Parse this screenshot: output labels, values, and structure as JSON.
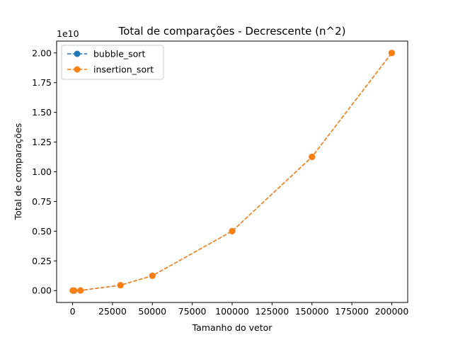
{
  "chart_data": {
    "type": "line",
    "title": "Total de comparações - Decrescente (n^2)",
    "xlabel": "Tamanho do vetor",
    "ylabel": "Total de comparações",
    "y_offset_label": "1e10",
    "x_ticks": [
      0,
      25000,
      50000,
      75000,
      100000,
      125000,
      150000,
      175000,
      200000
    ],
    "x_tick_labels": [
      "0",
      "25000",
      "50000",
      "75000",
      "100000",
      "125000",
      "150000",
      "175000",
      "200000"
    ],
    "y_ticks": [
      0,
      2500000000,
      5000000000,
      7500000000,
      10000000000,
      12500000000,
      15000000000,
      17500000000,
      20000000000
    ],
    "y_tick_labels": [
      "0.00",
      "0.25",
      "0.50",
      "0.75",
      "1.00",
      "1.25",
      "1.50",
      "1.75",
      "2.00"
    ],
    "xlim": [
      -10000,
      210000
    ],
    "ylim": [
      -1000000000,
      21000000000
    ],
    "grid": false,
    "legend_position": "top-left",
    "x": [
      100,
      1000,
      5000,
      30000,
      50000,
      100000,
      150000,
      200000
    ],
    "series": [
      {
        "name": "bubble_sort",
        "color": "#1f77b4",
        "values": [
          4950,
          499500,
          12497500,
          449985000,
          1249975000,
          4999950000,
          11249925000,
          19999900000
        ]
      },
      {
        "name": "insertion_sort",
        "color": "#ff7f0e",
        "values": [
          4950,
          499500,
          12497500,
          449985000,
          1249975000,
          4999950000,
          11249925000,
          19999900000
        ]
      }
    ]
  }
}
